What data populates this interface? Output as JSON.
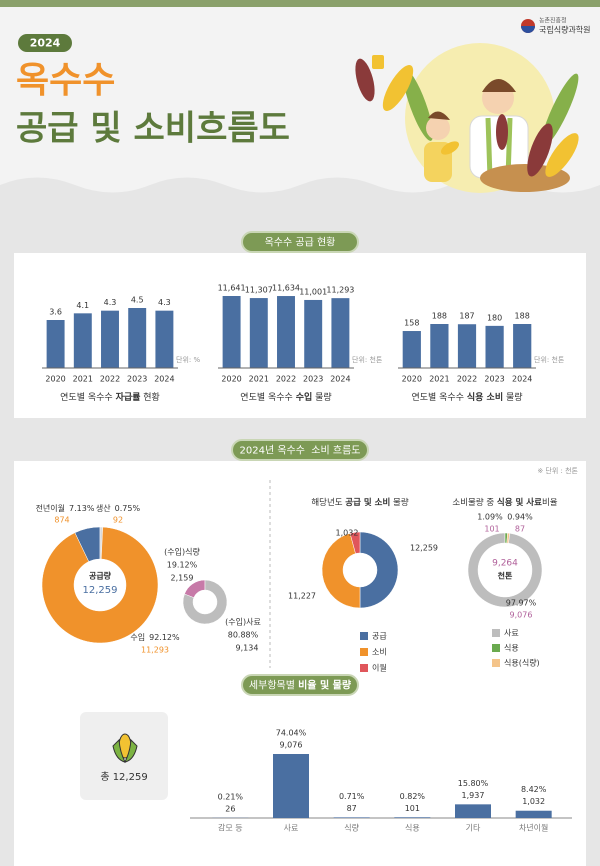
{
  "header": {
    "badge": "2024",
    "title_line1": "옥수수",
    "title_line2": "공급 및 소비흐름도",
    "org1": "농촌진흥청",
    "org2": "국립식량과학원"
  },
  "section_titles": [
    "옥수수 공급 현황",
    "2024년 옥수수  소비 흐름도"
  ],
  "detail_title": [
    "세부항목별 ",
    "비율 및 물량"
  ],
  "unit_note": "※ 단위 : 천톤",
  "total_box": "총 12,259",
  "chart_data": [
    {
      "type": "bar",
      "categories": [
        "2020",
        "2021",
        "2022",
        "2023",
        "2024"
      ],
      "values": [
        3.6,
        4.1,
        4.3,
        4.5,
        4.3
      ],
      "color": "#4a6fa1",
      "unit": "단위: %",
      "caption": [
        "연도별 옥수수 ",
        "자급률",
        " 현황"
      ]
    },
    {
      "type": "bar",
      "categories": [
        "2020",
        "2021",
        "2022",
        "2023",
        "2024"
      ],
      "values": [
        11641,
        11307,
        11634,
        11001,
        11293
      ],
      "value_labels": [
        "11,641",
        "11,307",
        "11,634",
        "11,001",
        "11,293"
      ],
      "color": "#4a6fa1",
      "unit": "단위: 천톤",
      "caption": [
        "연도별 옥수수 ",
        "수입",
        " 물량"
      ]
    },
    {
      "type": "bar",
      "categories": [
        "2020",
        "2021",
        "2022",
        "2023",
        "2024"
      ],
      "values": [
        158,
        188,
        187,
        180,
        188
      ],
      "color": "#4a6fa1",
      "unit": "단위: 천톤",
      "caption": [
        "연도별 옥수수 ",
        "식용 소비",
        " 물량"
      ]
    },
    {
      "type": "donut",
      "center_title": "공급량",
      "center_value": "12,259",
      "categories": [
        "전년이월",
        "생산",
        "수입"
      ],
      "values": [
        874,
        92,
        11293
      ],
      "value_labels": [
        "874",
        "92",
        "11,293"
      ],
      "percents": [
        7.13,
        0.75,
        92.12
      ],
      "percent_labels": [
        "7.13%",
        "0.75%",
        "92.12%"
      ],
      "colors": [
        "#4a6fa1",
        "#d9d9d9",
        "#f0922b"
      ]
    },
    {
      "type": "donut",
      "categories": [
        "(수입)식량",
        "(수입)사료"
      ],
      "values": [
        2159,
        9134
      ],
      "value_labels": [
        "2,159",
        "9,134"
      ],
      "percents": [
        19.12,
        80.88
      ],
      "percent_labels": [
        "19.12%",
        "80.88%"
      ],
      "colors": [
        "#c77aa8",
        "#bdbdbd"
      ]
    },
    {
      "type": "donut",
      "title": [
        "해당년도 ",
        "공급 및 소비",
        " 물량"
      ],
      "categories": [
        "공급",
        "소비",
        "이월"
      ],
      "values": [
        12259,
        11227,
        1032
      ],
      "value_labels": [
        "12,259",
        "11,227",
        "1,032"
      ],
      "colors": [
        "#4a6fa1",
        "#f0922b",
        "#e0565b"
      ]
    },
    {
      "type": "donut",
      "title": [
        "소비물량 중 ",
        "식용 및 사료",
        "비율"
      ],
      "center_value": "9,264",
      "center_title": "천톤",
      "categories": [
        "사료",
        "식용",
        "식용(식량)"
      ],
      "values": [
        9076,
        101,
        87
      ],
      "value_labels": [
        "9,076",
        "101",
        "87"
      ],
      "percents": [
        97.97,
        1.09,
        0.94
      ],
      "percent_labels": [
        "97.97%",
        "1.09%",
        "0.94%"
      ],
      "colors": [
        "#bdbdbd",
        "#6aaa4f",
        "#f4c48a"
      ]
    },
    {
      "type": "bar",
      "categories": [
        "감모 등",
        "사료",
        "식량",
        "식용",
        "기타",
        "차년이월"
      ],
      "values": [
        26,
        9076,
        87,
        101,
        1937,
        1032
      ],
      "value_labels": [
        "26",
        "9,076",
        "87",
        "101",
        "1,937",
        "1,032"
      ],
      "percents": [
        0.21,
        74.04,
        0.71,
        0.82,
        15.8,
        8.42
      ],
      "percent_labels": [
        "0.21%",
        "74.04%",
        "0.71%",
        "0.82%",
        "15.80%",
        "8.42%"
      ],
      "color": "#4a6fa1"
    }
  ]
}
